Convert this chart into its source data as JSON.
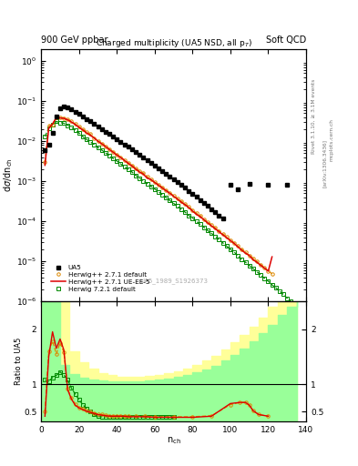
{
  "title_left": "900 GeV ppbar",
  "title_right": "Soft QCD",
  "plot_title": "Charged multiplicity (UA5 NSD, all p$_T$)",
  "ylabel_main": "dσ/dn_{ch}",
  "ylabel_ratio": "Ratio to UA5",
  "xlabel": "n_{ch}",
  "watermark": "UA5_1989_S1926373",
  "right_label_top": "Rivet 3.1.10, ≥ 3.1M events",
  "right_label_bot": "[arXiv:1306.3436]",
  "right_label_site": "mcplots.cern.ch",
  "xlim": [
    0,
    140
  ],
  "ylim_main_lo": 1e-06,
  "ylim_main_hi": 2.0,
  "ylim_ratio_lo": 0.32,
  "ylim_ratio_hi": 2.5,
  "ua5_x": [
    2,
    4,
    6,
    8,
    10,
    12,
    14,
    16,
    18,
    20,
    22,
    24,
    26,
    28,
    30,
    32,
    34,
    36,
    38,
    40,
    42,
    44,
    46,
    48,
    50,
    52,
    54,
    56,
    58,
    60,
    62,
    64,
    66,
    68,
    70,
    72,
    74,
    76,
    78,
    80,
    82,
    84,
    86,
    88,
    90,
    92,
    94,
    96,
    100,
    104,
    110,
    120,
    130
  ],
  "ua5_y": [
    0.006,
    0.008,
    0.016,
    0.042,
    0.067,
    0.073,
    0.07,
    0.062,
    0.054,
    0.047,
    0.041,
    0.036,
    0.031,
    0.027,
    0.023,
    0.02,
    0.017,
    0.015,
    0.013,
    0.011,
    0.0095,
    0.0083,
    0.0072,
    0.0063,
    0.0054,
    0.0047,
    0.004,
    0.0034,
    0.0029,
    0.0025,
    0.0021,
    0.0018,
    0.0015,
    0.0013,
    0.0011,
    0.00095,
    0.0008,
    0.00068,
    0.00057,
    0.00049,
    0.00041,
    0.00034,
    0.00029,
    0.00024,
    0.0002,
    0.00017,
    0.00014,
    0.00012,
    0.00082,
    0.00063,
    0.00085,
    0.00082,
    0.0008
  ],
  "herwig_default_x": [
    2,
    4,
    6,
    8,
    10,
    12,
    14,
    16,
    18,
    20,
    22,
    24,
    26,
    28,
    30,
    32,
    34,
    36,
    38,
    40,
    42,
    44,
    46,
    48,
    50,
    52,
    54,
    56,
    58,
    60,
    62,
    64,
    66,
    68,
    70,
    72,
    74,
    76,
    78,
    80,
    82,
    84,
    86,
    88,
    90,
    92,
    94,
    96,
    98,
    100,
    102,
    104,
    106,
    108,
    110,
    112,
    114,
    116,
    118,
    120,
    122
  ],
  "herwig_default_y": [
    0.003,
    0.024,
    0.026,
    0.04,
    0.039,
    0.038,
    0.035,
    0.031,
    0.027,
    0.023,
    0.02,
    0.017,
    0.015,
    0.012,
    0.01,
    0.0088,
    0.0075,
    0.0064,
    0.0054,
    0.0046,
    0.004,
    0.0034,
    0.0029,
    0.0025,
    0.0021,
    0.0018,
    0.0016,
    0.0013,
    0.0011,
    0.00095,
    0.00082,
    0.0007,
    0.0006,
    0.00051,
    0.00044,
    0.00037,
    0.00032,
    0.00027,
    0.00023,
    0.00019,
    0.00016,
    0.00014,
    0.00011,
    9.7e-05,
    8.2e-05,
    6.9e-05,
    5.8e-05,
    4.9e-05,
    4.1e-05,
    3.4e-05,
    2.9e-05,
    2.4e-05,
    2e-05,
    1.7e-05,
    1.4e-05,
    1.2e-05,
    1e-05,
    8.3e-06,
    7e-06,
    5.8e-06,
    4.9e-06
  ],
  "herwig_ueee5_x": [
    2,
    4,
    6,
    8,
    10,
    12,
    14,
    16,
    18,
    20,
    22,
    24,
    26,
    28,
    30,
    32,
    34,
    36,
    38,
    40,
    42,
    44,
    46,
    48,
    50,
    52,
    54,
    56,
    58,
    60,
    62,
    64,
    66,
    68,
    70,
    72,
    74,
    76,
    78,
    80,
    82,
    84,
    86,
    88,
    90,
    92,
    94,
    96,
    98,
    100,
    102,
    104,
    106,
    108,
    110,
    112,
    114,
    116,
    118,
    120,
    122
  ],
  "herwig_ueee5_y": [
    0.0025,
    0.021,
    0.027,
    0.038,
    0.038,
    0.037,
    0.034,
    0.03,
    0.026,
    0.022,
    0.019,
    0.016,
    0.014,
    0.012,
    0.01,
    0.0086,
    0.0073,
    0.0062,
    0.0053,
    0.0045,
    0.0039,
    0.0033,
    0.0028,
    0.0024,
    0.002,
    0.0017,
    0.0015,
    0.0012,
    0.0011,
    0.00093,
    0.0008,
    0.00068,
    0.00058,
    0.0005,
    0.00042,
    0.00036,
    0.0003,
    0.00026,
    0.00022,
    0.00018,
    0.00015,
    0.00013,
    0.00011,
    9.1e-05,
    7.7e-05,
    6.5e-05,
    5.5e-05,
    4.6e-05,
    3.9e-05,
    3.3e-05,
    2.8e-05,
    2.3e-05,
    1.9e-05,
    1.6e-05,
    1.4e-05,
    1.1e-05,
    9.5e-06,
    8e-06,
    6.8e-06,
    5.7e-06,
    1.3e-05
  ],
  "herwig72_x": [
    2,
    4,
    6,
    8,
    10,
    12,
    14,
    16,
    18,
    20,
    22,
    24,
    26,
    28,
    30,
    32,
    34,
    36,
    38,
    40,
    42,
    44,
    46,
    48,
    50,
    52,
    54,
    56,
    58,
    60,
    62,
    64,
    66,
    68,
    70,
    72,
    74,
    76,
    78,
    80,
    82,
    84,
    86,
    88,
    90,
    92,
    94,
    96,
    98,
    100,
    102,
    104,
    106,
    108,
    110,
    112,
    114,
    116,
    118,
    120,
    122,
    124,
    126,
    128,
    130,
    132,
    134,
    136,
    138,
    140
  ],
  "herwig72_y": [
    0.013,
    0.021,
    0.026,
    0.031,
    0.029,
    0.028,
    0.025,
    0.022,
    0.019,
    0.016,
    0.013,
    0.011,
    0.0096,
    0.0082,
    0.007,
    0.006,
    0.0051,
    0.0044,
    0.0037,
    0.0032,
    0.0027,
    0.0023,
    0.002,
    0.0017,
    0.0014,
    0.0012,
    0.001,
    0.00088,
    0.00075,
    0.00064,
    0.00055,
    0.00046,
    0.00039,
    0.00033,
    0.00028,
    0.00024,
    0.0002,
    0.00017,
    0.00014,
    0.00012,
    0.0001,
    8.4e-05,
    7.1e-05,
    5.9e-05,
    5e-05,
    4.2e-05,
    3.5e-05,
    2.9e-05,
    2.4e-05,
    2e-05,
    1.7e-05,
    1.4e-05,
    1.1e-05,
    9.5e-06,
    7.9e-06,
    6.6e-06,
    5.5e-06,
    4.6e-06,
    3.8e-06,
    3.2e-06,
    2.6e-06,
    2.2e-06,
    1.8e-06,
    1.5e-06,
    1.2e-06,
    9.9e-07,
    8.2e-07,
    6.8e-07,
    5.6e-07,
    4.7e-07
  ],
  "colors": {
    "ua5": "#000000",
    "herwig_default": "#dd8800",
    "herwig_ueee5": "#dd0000",
    "herwig72": "#008800"
  },
  "ratio_ue_x": [
    2,
    4,
    6,
    8,
    10,
    12,
    14,
    16,
    18,
    20,
    22,
    24,
    26,
    28,
    30,
    32,
    34,
    36,
    38,
    40,
    42,
    44,
    46,
    50,
    55,
    60,
    70,
    80,
    90,
    100,
    105,
    108,
    110,
    112,
    115,
    120
  ],
  "ratio_ue_y": [
    0.42,
    1.5,
    1.95,
    1.65,
    1.82,
    1.62,
    0.9,
    0.73,
    0.62,
    0.57,
    0.54,
    0.51,
    0.49,
    0.47,
    0.45,
    0.44,
    0.43,
    0.42,
    0.42,
    0.42,
    0.42,
    0.42,
    0.41,
    0.41,
    0.41,
    0.4,
    0.4,
    0.4,
    0.42,
    0.65,
    0.67,
    0.67,
    0.62,
    0.52,
    0.45,
    0.42
  ],
  "ratio_hd_x": [
    2,
    4,
    6,
    8,
    10,
    12,
    14,
    16,
    18,
    20,
    22,
    24,
    26,
    28,
    30,
    32,
    34,
    36,
    38,
    40,
    42,
    44,
    46,
    50,
    55,
    60,
    70,
    80,
    90,
    100,
    105,
    108,
    110,
    112,
    115,
    120
  ],
  "ratio_hd_y": [
    0.5,
    1.6,
    1.78,
    1.55,
    1.75,
    1.58,
    0.92,
    0.75,
    0.64,
    0.58,
    0.55,
    0.52,
    0.5,
    0.48,
    0.46,
    0.45,
    0.44,
    0.43,
    0.43,
    0.43,
    0.43,
    0.43,
    0.42,
    0.42,
    0.42,
    0.41,
    0.41,
    0.41,
    0.43,
    0.63,
    0.67,
    0.67,
    0.62,
    0.52,
    0.45,
    0.42
  ],
  "ratio_h7_x": [
    2,
    4,
    6,
    8,
    10,
    12,
    14,
    16,
    18,
    20,
    22,
    24,
    26,
    28,
    30,
    32,
    34,
    36,
    38,
    40,
    42,
    44,
    46,
    48,
    50,
    52,
    54,
    56,
    58,
    60,
    62,
    64,
    66,
    68,
    70
  ],
  "ratio_h7_y": [
    1.08,
    1.05,
    1.12,
    1.16,
    1.22,
    1.17,
    1.08,
    0.93,
    0.82,
    0.72,
    0.63,
    0.56,
    0.5,
    0.45,
    0.42,
    0.41,
    0.41,
    0.41,
    0.41,
    0.41,
    0.41,
    0.41,
    0.41,
    0.41,
    0.41,
    0.41,
    0.41,
    0.41,
    0.41,
    0.41,
    0.41,
    0.41,
    0.41,
    0.41,
    0.41
  ],
  "band_yellow_x": [
    0,
    5,
    10,
    15,
    20,
    25,
    30,
    35,
    40,
    45,
    50,
    55,
    60,
    65,
    70,
    75,
    80,
    85,
    90,
    95,
    100,
    105,
    110,
    115,
    120,
    125,
    130,
    135
  ],
  "band_yellow_lo": [
    0.32,
    0.32,
    0.5,
    0.75,
    0.82,
    0.85,
    0.87,
    0.87,
    0.87,
    0.87,
    0.87,
    0.87,
    0.86,
    0.85,
    0.84,
    0.82,
    0.79,
    0.76,
    0.72,
    0.67,
    0.62,
    0.55,
    0.48,
    0.4,
    0.32,
    0.32,
    0.32,
    0.32
  ],
  "band_yellow_hi": [
    2.5,
    2.5,
    2.5,
    1.6,
    1.4,
    1.28,
    1.2,
    1.16,
    1.14,
    1.14,
    1.14,
    1.15,
    1.17,
    1.2,
    1.24,
    1.29,
    1.35,
    1.43,
    1.52,
    1.63,
    1.76,
    1.9,
    2.05,
    2.2,
    2.4,
    2.5,
    2.5,
    2.5
  ],
  "band_green_x": [
    0,
    5,
    10,
    15,
    20,
    25,
    30,
    35,
    40,
    45,
    50,
    55,
    60,
    65,
    70,
    75,
    80,
    85,
    90,
    95,
    100,
    105,
    110,
    115,
    120,
    125,
    130,
    135
  ],
  "band_green_lo": [
    0.32,
    0.32,
    0.32,
    0.32,
    0.32,
    0.32,
    0.32,
    0.32,
    0.32,
    0.32,
    0.32,
    0.32,
    0.32,
    0.32,
    0.32,
    0.32,
    0.32,
    0.32,
    0.32,
    0.32,
    0.32,
    0.32,
    0.32,
    0.32,
    0.32,
    0.32,
    0.32,
    0.32
  ],
  "band_green_hi": [
    2.5,
    2.5,
    1.35,
    1.18,
    1.12,
    1.09,
    1.07,
    1.06,
    1.06,
    1.06,
    1.06,
    1.07,
    1.08,
    1.1,
    1.13,
    1.16,
    1.21,
    1.27,
    1.34,
    1.43,
    1.53,
    1.65,
    1.78,
    1.92,
    2.08,
    2.25,
    2.4,
    2.5
  ]
}
